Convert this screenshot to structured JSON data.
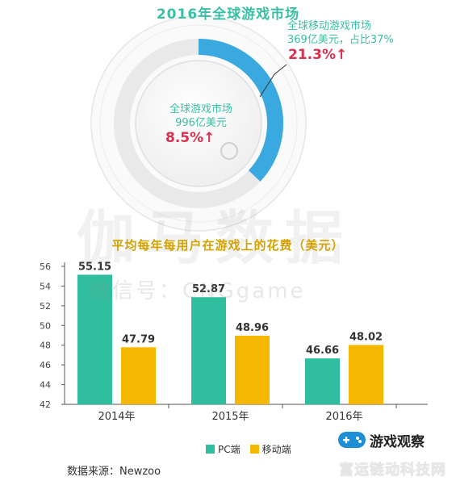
{
  "top_title": "2016年全球游戏市场",
  "mobile": {
    "label": "全球移动游戏市场",
    "amount": "369亿美元，占比37%",
    "growth": "21.3%↑",
    "share": 0.37
  },
  "global": {
    "label": "全球游戏市场",
    "amount": "996亿美元",
    "growth": "8.5%↑"
  },
  "watermark": {
    "main": "伽马数据",
    "sub": "微信号：CNGgame"
  },
  "source": "数据来源：Newzoo",
  "brand": {
    "name": "游戏观察",
    "sub": "富运链动科技网"
  },
  "colors": {
    "pc": "#2fbf9f",
    "mobile": "#f5b800",
    "accent_red": "#d9304f",
    "ring_blue": "#3aa9e0"
  },
  "chart_data": {
    "type": "bar",
    "title": "平均每年每用户在游戏上的花费（美元）",
    "categories": [
      "2014年",
      "2015年",
      "2016年"
    ],
    "series": [
      {
        "name": "PC端",
        "values": [
          55.15,
          52.87,
          46.66
        ],
        "labels": [
          "55.15",
          "52.87",
          "46.66"
        ]
      },
      {
        "name": "移动端",
        "values": [
          47.79,
          48.96,
          48.02
        ],
        "labels": [
          "47.79",
          "48.96",
          "48.02"
        ]
      }
    ],
    "yticks": [
      "56",
      "54",
      "52",
      "50",
      "48",
      "46",
      "44",
      "42"
    ],
    "ylim": [
      42,
      56
    ],
    "grid": false,
    "legend": "bottom"
  }
}
